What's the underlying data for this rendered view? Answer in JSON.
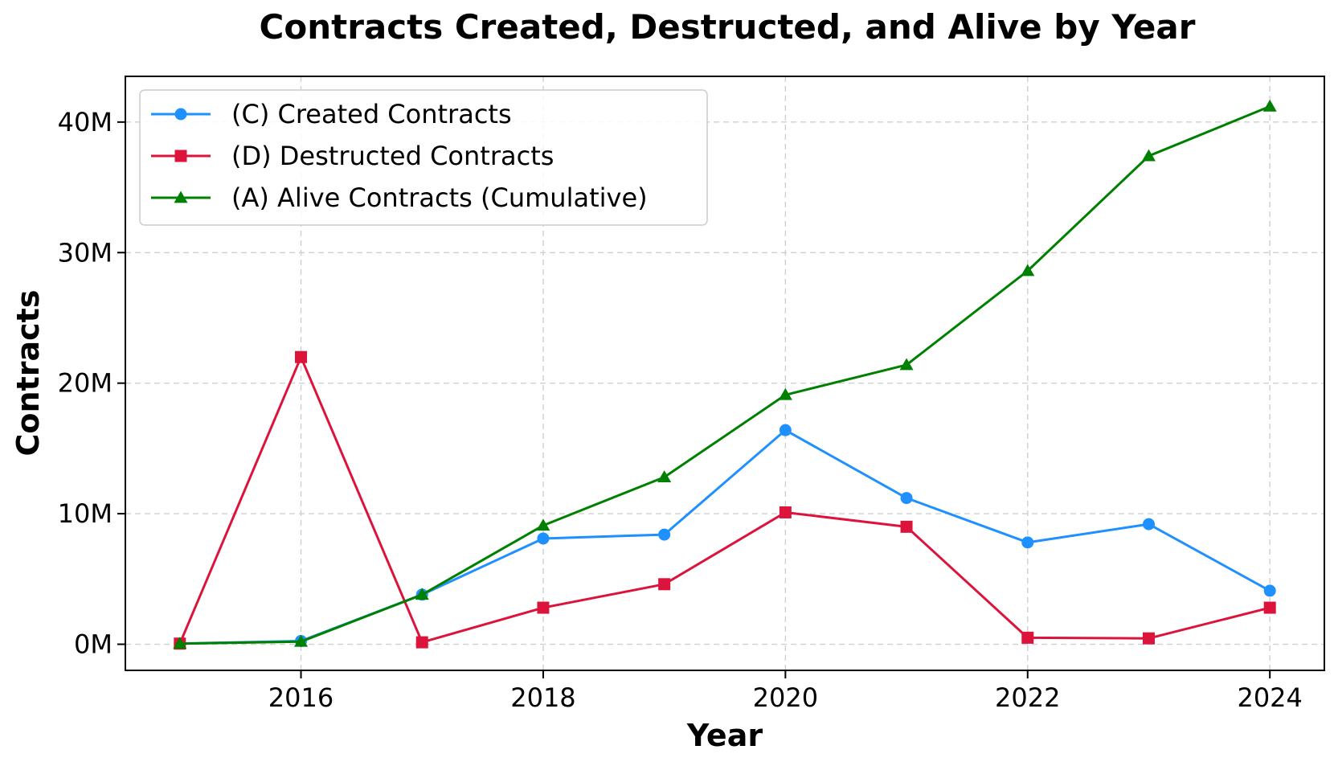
{
  "chart_data": {
    "type": "line",
    "title": "Contracts Created, Destructed, and Alive by Year",
    "xlabel": "Year",
    "ylabel": "Contracts",
    "x": [
      2015,
      2016,
      2017,
      2018,
      2019,
      2020,
      2021,
      2022,
      2023,
      2024
    ],
    "xlim": [
      2014.55,
      2024.45
    ],
    "ylim": [
      -2.0,
      43.5
    ],
    "x_ticks": [
      2016,
      2018,
      2020,
      2022,
      2024
    ],
    "x_tick_labels": [
      "2016",
      "2018",
      "2020",
      "2022",
      "2024"
    ],
    "y_ticks": [
      0,
      10,
      20,
      30,
      40
    ],
    "y_tick_labels": [
      "0M",
      "10M",
      "20M",
      "30M",
      "40M"
    ],
    "grid": true,
    "legend_position": "top-left",
    "series": [
      {
        "name": "(C) Created Contracts",
        "color": "#1e90ff",
        "marker": "circle",
        "values": [
          0.05,
          0.25,
          3.8,
          8.1,
          8.4,
          16.4,
          11.2,
          7.8,
          9.2,
          4.1
        ]
      },
      {
        "name": "(D) Destructed Contracts",
        "color": "#dc143c",
        "marker": "square",
        "values": [
          0.05,
          22.0,
          0.15,
          2.8,
          4.6,
          10.1,
          9.0,
          0.5,
          0.45,
          2.8
        ]
      },
      {
        "name": "(A) Alive Contracts (Cumulative)",
        "color": "#008000",
        "marker": "triangle",
        "values": [
          0.05,
          0.2,
          3.8,
          9.1,
          12.8,
          19.1,
          21.4,
          28.6,
          37.4,
          41.2
        ]
      }
    ]
  }
}
